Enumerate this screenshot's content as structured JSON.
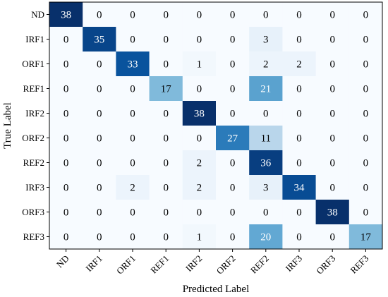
{
  "chart_data": {
    "type": "heatmap",
    "title": "",
    "xlabel": "Predicted Label",
    "ylabel": "True Label",
    "x_categories": [
      "ND",
      "IRF1",
      "ORF1",
      "REF1",
      "IRF2",
      "ORF2",
      "REF2",
      "IRF3",
      "ORF3",
      "REF3"
    ],
    "y_categories": [
      "ND",
      "IRF1",
      "ORF1",
      "REF1",
      "IRF2",
      "ORF2",
      "REF2",
      "IRF3",
      "ORF3",
      "REF3"
    ],
    "values": [
      [
        38,
        0,
        0,
        0,
        0,
        0,
        0,
        0,
        0,
        0
      ],
      [
        0,
        35,
        0,
        0,
        0,
        0,
        3,
        0,
        0,
        0
      ],
      [
        0,
        0,
        33,
        0,
        1,
        0,
        2,
        2,
        0,
        0
      ],
      [
        0,
        0,
        0,
        17,
        0,
        0,
        21,
        0,
        0,
        0
      ],
      [
        0,
        0,
        0,
        0,
        38,
        0,
        0,
        0,
        0,
        0
      ],
      [
        0,
        0,
        0,
        0,
        0,
        27,
        11,
        0,
        0,
        0
      ],
      [
        0,
        0,
        0,
        0,
        2,
        0,
        36,
        0,
        0,
        0
      ],
      [
        0,
        0,
        2,
        0,
        2,
        0,
        3,
        34,
        0,
        0
      ],
      [
        0,
        0,
        0,
        0,
        0,
        0,
        0,
        0,
        38,
        0
      ],
      [
        0,
        0,
        0,
        0,
        1,
        0,
        20,
        0,
        0,
        17
      ]
    ],
    "value_range": [
      0,
      38
    ],
    "colormap": {
      "low": "#f7fbff",
      "high": "#08306b"
    },
    "grid": false,
    "legend": "none"
  }
}
